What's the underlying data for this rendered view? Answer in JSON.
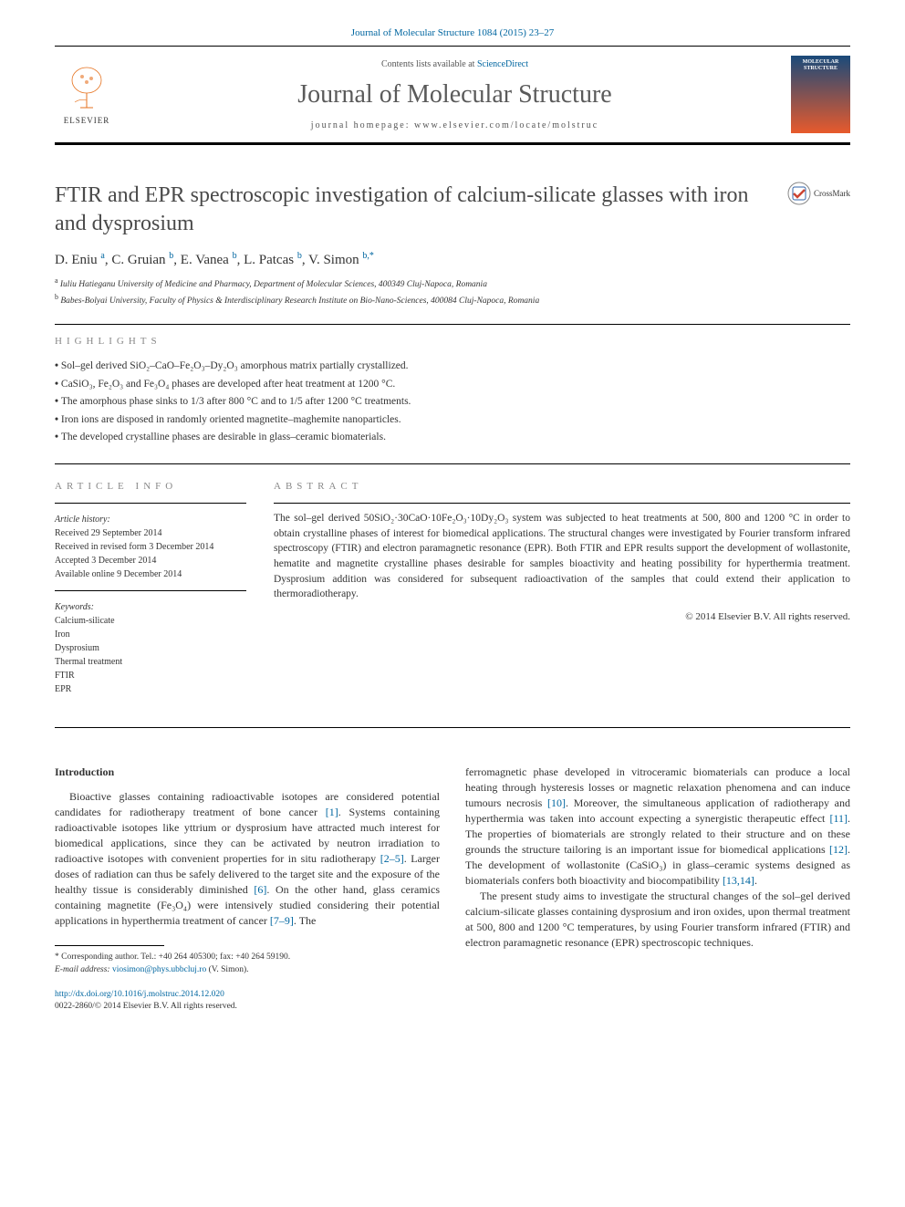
{
  "header": {
    "reference": "Journal of Molecular Structure 1084 (2015) 23–27",
    "contents_prefix": "Contents lists available at ",
    "contents_link": "ScienceDirect",
    "journal_name": "Journal of Molecular Structure",
    "homepage_label": "journal homepage: www.elsevier.com/locate/molstruc",
    "elsevier_label": "ELSEVIER",
    "cover_title": "MOLECULAR STRUCTURE"
  },
  "crossmark_label": "CrossMark",
  "title": "FTIR and EPR spectroscopic investigation of calcium-silicate glasses with iron and dysprosium",
  "authors_html": "D. Eniu <sup>a</sup>, C. Gruian <sup>b</sup>, E. Vanea <sup>b</sup>, L. Patcas <sup>b</sup>, V. Simon <sup>b,*</sup>",
  "affiliations": [
    "a Iuliu Hatieganu University of Medicine and Pharmacy, Department of Molecular Sciences, 400349 Cluj-Napoca, Romania",
    "b Babes-Bolyai University, Faculty of Physics & Interdisciplinary Research Institute on Bio-Nano-Sciences, 400084 Cluj-Napoca, Romania"
  ],
  "highlights_label": "HIGHLIGHTS",
  "highlights": [
    "Sol–gel derived SiO₂–CaO–Fe₂O₃–Dy₂O₃ amorphous matrix partially crystallized.",
    "CaSiO₃, Fe₂O₃ and Fe₃O₄ phases are developed after heat treatment at 1200 °C.",
    "The amorphous phase sinks to 1/3 after 800 °C and to 1/5 after 1200 °C treatments.",
    "Iron ions are disposed in randomly oriented magnetite–maghemite nanoparticles.",
    "The developed crystalline phases are desirable in glass–ceramic biomaterials."
  ],
  "article_info_label": "ARTICLE INFO",
  "abstract_label": "ABSTRACT",
  "history": {
    "label": "Article history:",
    "received": "Received 29 September 2014",
    "revised": "Received in revised form 3 December 2014",
    "accepted": "Accepted 3 December 2014",
    "online": "Available online 9 December 2014"
  },
  "keywords_label": "Keywords:",
  "keywords": [
    "Calcium-silicate",
    "Iron",
    "Dysprosium",
    "Thermal treatment",
    "FTIR",
    "EPR"
  ],
  "abstract": "The sol–gel derived 50SiO₂·30CaO·10Fe₂O₃·10Dy₂O₃ system was subjected to heat treatments at 500, 800 and 1200 °C in order to obtain crystalline phases of interest for biomedical applications. The structural changes were investigated by Fourier transform infrared spectroscopy (FTIR) and electron paramagnetic resonance (EPR). Both FTIR and EPR results support the development of wollastonite, hematite and magnetite crystalline phases desirable for samples bioactivity and heating possibility for hyperthermia treatment. Dysprosium addition was considered for subsequent radioactivation of the samples that could extend their application to thermoradiotherapy.",
  "copyright": "© 2014 Elsevier B.V. All rights reserved.",
  "intro_heading": "Introduction",
  "intro_col1_p1_pre": "Bioactive glasses containing radioactivable isotopes are considered potential candidates for radiotherapy treatment of bone cancer ",
  "intro_col1_ref1": "[1]",
  "intro_col1_p1_mid1": ". Systems containing radioactivable isotopes like yttrium or dysprosium have attracted much interest for biomedical applications, since they can be activated by neutron irradiation to radioactive isotopes with convenient properties for in situ radiotherapy ",
  "intro_col1_ref2": "[2–5]",
  "intro_col1_p1_mid2": ". Larger doses of radiation can thus be safely delivered to the target site and the exposure of the healthy tissue is considerably diminished ",
  "intro_col1_ref3": "[6]",
  "intro_col1_p1_mid3": ". On the other hand, glass ceramics containing magnetite (Fe₃O₄) were intensively studied considering their potential applications in hyperthermia treatment of cancer ",
  "intro_col1_ref4": "[7–9]",
  "intro_col1_p1_end": ". The",
  "intro_col2_p1_pre": "ferromagnetic phase developed in vitroceramic biomaterials can produce a local heating through hysteresis losses or magnetic relaxation phenomena and can induce tumours necrosis ",
  "intro_col2_ref1": "[10]",
  "intro_col2_p1_mid1": ". Moreover, the simultaneous application of radiotherapy and hyperthermia was taken into account expecting a synergistic therapeutic effect ",
  "intro_col2_ref2": "[11]",
  "intro_col2_p1_mid2": ". The properties of biomaterials are strongly related to their structure and on these grounds the structure tailoring is an important issue for biomedical applications ",
  "intro_col2_ref3": "[12]",
  "intro_col2_p1_mid3": ". The development of wollastonite (CaSiO₃) in glass–ceramic systems designed as biomaterials confers both bioactivity and biocompatibility ",
  "intro_col2_ref4": "[13,14]",
  "intro_col2_p1_end": ".",
  "intro_col2_p2": "The present study aims to investigate the structural changes of the sol–gel derived calcium-silicate glasses containing dysprosium and iron oxides, upon thermal treatment at 500, 800 and 1200 °C temperatures, by using Fourier transform infrared (FTIR) and electron paramagnetic resonance (EPR) spectroscopic techniques.",
  "footnotes": {
    "corresponding": "* Corresponding author. Tel.: +40 264 405300; fax: +40 264 59190.",
    "email_label": "E-mail address: ",
    "email": "viosimon@phys.ubbcluj.ro",
    "email_suffix": " (V. Simon)."
  },
  "doi": {
    "url": "http://dx.doi.org/10.1016/j.molstruc.2014.12.020",
    "issn_line": "0022-2860/© 2014 Elsevier B.V. All rights reserved."
  },
  "colors": {
    "link": "#0066a0",
    "elsevier_orange": "#e6721f",
    "text": "#333333",
    "title_gray": "#4a4a4a"
  }
}
